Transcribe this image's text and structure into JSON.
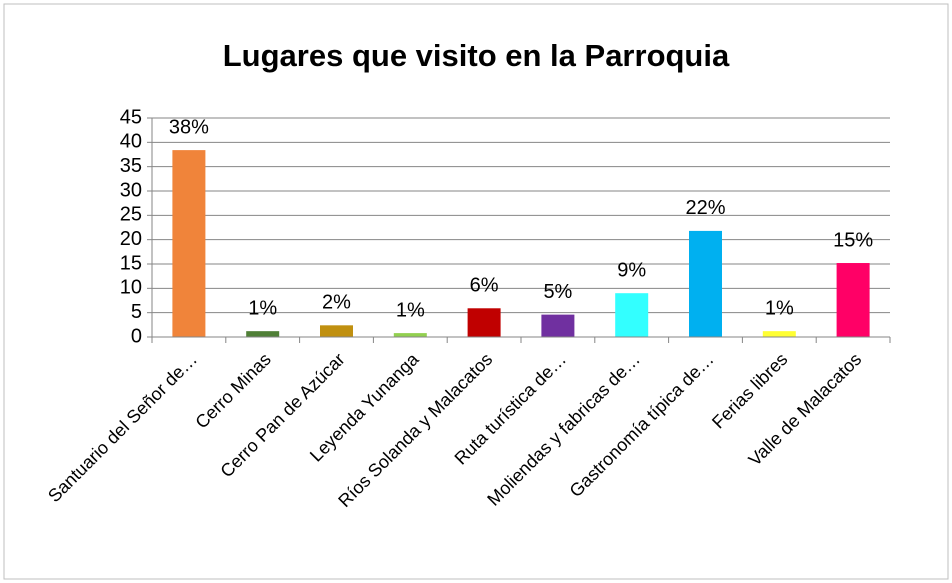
{
  "chart_data": {
    "type": "bar",
    "title": "Lugares que visito en la Parroquia",
    "categories": [
      "Santuario del Señor de…",
      "Cerro Minas",
      "Cerro Pan de Azúcar",
      "Leyenda Yunanga",
      "Ríos Solanda y Malacatos",
      "Ruta turística de…",
      "Moliendas y fabricas de…",
      "Gastronomía típica de…",
      "Ferias libres",
      "Valle de Malacatos"
    ],
    "values": [
      38.4,
      1.2,
      2.4,
      0.8,
      5.9,
      4.6,
      9,
      21.8,
      1.2,
      15.2
    ],
    "value_labels": [
      "38%",
      "1%",
      "2%",
      "1%",
      "6%",
      "5%",
      "9%",
      "22%",
      "1%",
      "15%"
    ],
    "colors": [
      "#f0843a",
      "#4f7f36",
      "#c09010",
      "#92d050",
      "#c00000",
      "#7030a0",
      "#33ffff",
      "#00b0f0",
      "#ffff33",
      "#ff0066"
    ],
    "ylim": [
      0,
      45
    ],
    "yticks": [
      0,
      5,
      10,
      15,
      20,
      25,
      30,
      35,
      40,
      45
    ],
    "grid": true
  }
}
